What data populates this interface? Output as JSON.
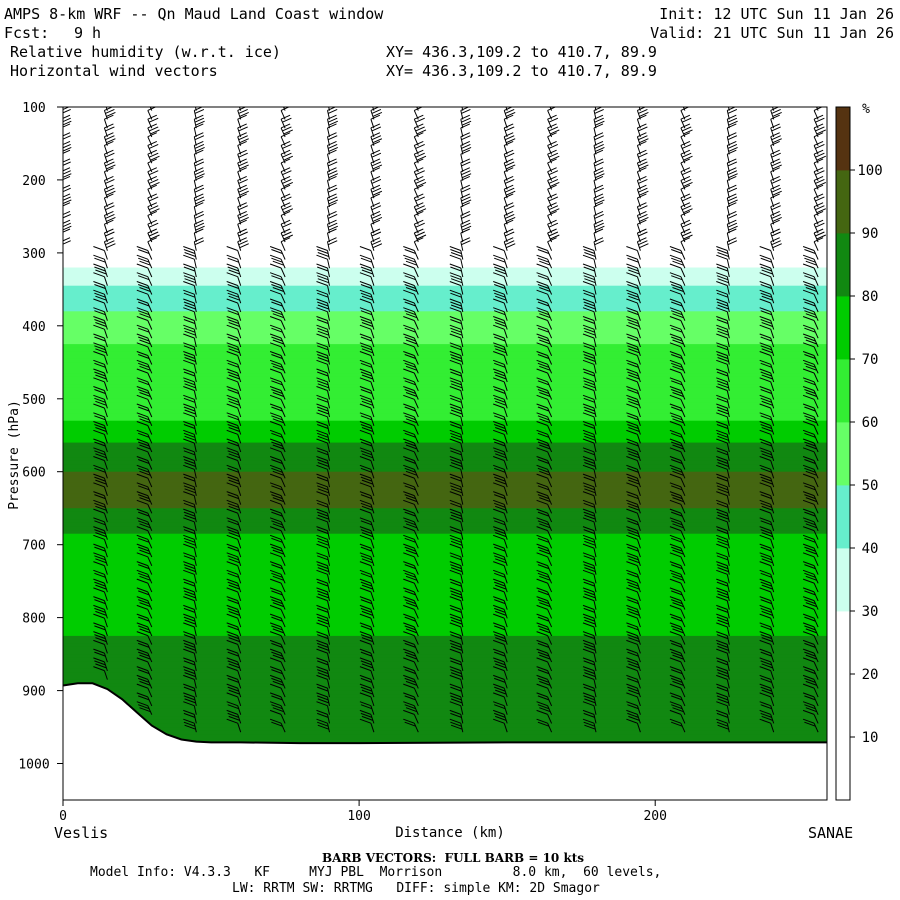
{
  "header": {
    "title": "AMPS 8-km WRF -- Qn Maud Land Coast window",
    "fcst_label": "Fcst:",
    "fcst_value": "9 h",
    "field1": "Relative humidity (w.r.t. ice)",
    "field2": "Horizontal wind vectors",
    "xy1": "XY= 436.3,109.2 to 410.7, 89.9",
    "xy2": "XY= 436.3,109.2 to 410.7, 89.9",
    "init": "Init: 12 UTC Sun 11 Jan 26",
    "valid": "Valid: 21 UTC Sun 11 Jan 26"
  },
  "footer": {
    "left_station": "Veslis",
    "right_station": "SANAE",
    "barb_note": "BARB VECTORS:  FULL BARB = 10 kts",
    "model_line1": "Model Info: V4.3.3   KF     MYJ PBL  Morrison         8.0 km,  60 levels,",
    "model_line2": "LW: RRTM SW: RRTMG   DIFF: simple KM: 2D Smagor"
  },
  "chart_data": {
    "type": "heatmap",
    "title": "Relative humidity (w.r.t. ice) and horizontal wind vectors",
    "xlabel": "Distance (km)",
    "ylabel": "Pressure (hPa)",
    "xlim": [
      0,
      258
    ],
    "ylim": [
      1050,
      100
    ],
    "x_ticks": [
      0,
      100,
      200
    ],
    "y_ticks": [
      100,
      200,
      300,
      400,
      500,
      600,
      700,
      800,
      900,
      1000
    ],
    "colorbar": {
      "unit": "%",
      "levels": [
        10,
        20,
        30,
        40,
        50,
        60,
        70,
        80,
        90,
        100
      ],
      "colors": [
        "#ffffff",
        "#ffffff",
        "#ffffff",
        "#ccffee",
        "#66eecc",
        "#66ff66",
        "#33ee33",
        "#00cc00",
        "#118811",
        "#446611",
        "#553311"
      ]
    },
    "rh_profile": {
      "pressure": [
        260,
        300,
        330,
        360,
        400,
        450,
        500,
        560,
        600,
        650,
        700,
        750,
        800,
        850,
        900,
        950
      ],
      "rh": [
        5,
        22,
        35,
        45,
        55,
        65,
        60,
        80,
        90,
        90,
        75,
        70,
        75,
        85,
        90,
        80
      ]
    },
    "terrain": {
      "distance_km": [
        0,
        5,
        10,
        15,
        20,
        25,
        30,
        35,
        40,
        45,
        50,
        60,
        80,
        100,
        150,
        200,
        258
      ],
      "pressure_hPa": [
        893,
        890,
        890,
        898,
        912,
        930,
        948,
        960,
        967,
        970,
        971,
        971,
        972,
        972,
        971,
        971,
        971
      ]
    },
    "wind_barbs": {
      "columns_km": [
        0,
        15,
        30,
        45,
        60,
        75,
        90,
        105,
        120,
        135,
        150,
        165,
        180,
        195,
        210,
        225,
        240,
        255
      ],
      "note": "FULL BARB = 10 kts"
    }
  }
}
